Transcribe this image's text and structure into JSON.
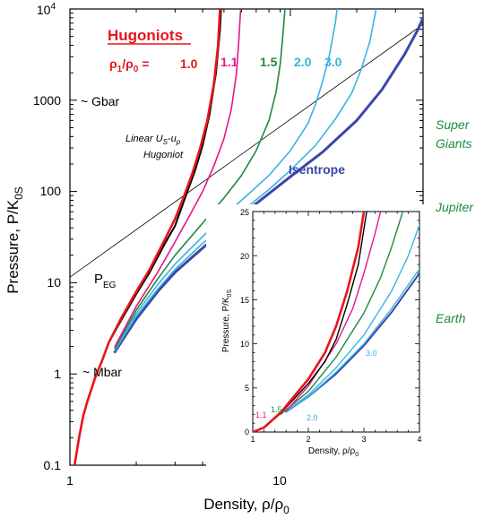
{
  "chart_data": [
    {
      "type": "line",
      "xscale": "log",
      "yscale": "log",
      "xlim": [
        1,
        40
      ],
      "ylim": [
        0.1,
        10000
      ],
      "xlabel": "Density, ρ/ρ",
      "xlabel_sub": "0",
      "ylabel": "Pressure, P/K",
      "ylabel_sub": "0S",
      "x_ticks": [
        {
          "value": 1,
          "label": "1"
        },
        {
          "value": 10,
          "label": "10"
        }
      ],
      "y_ticks": [
        {
          "value": 0.1,
          "label": "0.1"
        },
        {
          "value": 1,
          "label": "1"
        },
        {
          "value": 10,
          "label": "10"
        },
        {
          "value": 100,
          "label": "100"
        },
        {
          "value": 1000,
          "label": "1000"
        },
        {
          "value": 10000,
          "label": "10",
          "sup": "4"
        }
      ],
      "legend_title": "Hugoniots",
      "ratio_label": "ρ",
      "ratio_label_sub1": "1",
      "ratio_label_mid": "/ρ",
      "ratio_label_sub2": "0",
      "ratio_label_eq": " =",
      "series": [
        {
          "name": "1.0",
          "color": "#e8141c",
          "width": 2.6,
          "points": [
            [
              1.05,
              0.1
            ],
            [
              1.1,
              0.2
            ],
            [
              1.15,
              0.35
            ],
            [
              1.2,
              0.5
            ],
            [
              1.3,
              0.9
            ],
            [
              1.4,
              1.4
            ],
            [
              1.5,
              2.2
            ],
            [
              1.7,
              4
            ],
            [
              2.0,
              8
            ],
            [
              2.3,
              14
            ],
            [
              2.7,
              30
            ],
            [
              3.0,
              50
            ],
            [
              3.3,
              90
            ],
            [
              3.6,
              160
            ],
            [
              3.9,
              300
            ],
            [
              4.2,
              600
            ],
            [
              4.5,
              1500
            ],
            [
              4.7,
              4000
            ],
            [
              4.8,
              10000
            ]
          ]
        },
        {
          "name": "",
          "color": "#000000",
          "width": 2.0,
          "points": [
            [
              1.05,
              0.1
            ],
            [
              1.1,
              0.2
            ],
            [
              1.15,
              0.35
            ],
            [
              1.2,
              0.5
            ],
            [
              1.3,
              0.9
            ],
            [
              1.4,
              1.4
            ],
            [
              1.5,
              2.2
            ],
            [
              1.7,
              3.8
            ],
            [
              2.0,
              7.5
            ],
            [
              2.3,
              13
            ],
            [
              2.7,
              27
            ],
            [
              3.0,
              42
            ],
            [
              3.3,
              80
            ],
            [
              3.7,
              170
            ],
            [
              4.0,
              320
            ],
            [
              4.3,
              700
            ],
            [
              4.6,
              2000
            ],
            [
              4.8,
              6000
            ],
            [
              4.85,
              10000
            ]
          ]
        },
        {
          "name": "1.1",
          "color": "#e8148a",
          "width": 1.6,
          "points": [
            [
              1.6,
              2
            ],
            [
              2.0,
              5.5
            ],
            [
              2.5,
              13
            ],
            [
              3.0,
              28
            ],
            [
              3.5,
              55
            ],
            [
              4.0,
              100
            ],
            [
              4.5,
              190
            ],
            [
              5.0,
              380
            ],
            [
              5.4,
              800
            ],
            [
              5.7,
              2000
            ],
            [
              5.85,
              5000
            ],
            [
              5.95,
              10000
            ]
          ]
        },
        {
          "name": "1.5",
          "color": "#1f8a3c",
          "width": 1.6,
          "points": [
            [
              1.6,
              1.9
            ],
            [
              2.0,
              5
            ],
            [
              2.5,
              11
            ],
            [
              3.0,
              20
            ],
            [
              4.0,
              45
            ],
            [
              5.0,
              85
            ],
            [
              6.0,
              150
            ],
            [
              7.0,
              280
            ],
            [
              8.0,
              600
            ],
            [
              8.6,
              1200
            ],
            [
              9.0,
              2500
            ],
            [
              9.3,
              6000
            ],
            [
              9.45,
              10000
            ]
          ]
        },
        {
          "name": "2.0",
          "color": "#3bb3e0",
          "width": 1.6,
          "points": [
            [
              1.6,
              1.8
            ],
            [
              2.0,
              4.6
            ],
            [
              2.5,
              9.5
            ],
            [
              3.0,
              16
            ],
            [
              4.0,
              32
            ],
            [
              5.0,
              55
            ],
            [
              6.0,
              80
            ],
            [
              8.0,
              150
            ],
            [
              10.0,
              280
            ],
            [
              12.0,
              550
            ],
            [
              13.0,
              900
            ],
            [
              14.0,
              1600
            ],
            [
              15.0,
              3000
            ],
            [
              16.0,
              7000
            ],
            [
              16.3,
              10000
            ]
          ]
        },
        {
          "name": "3.0",
          "color": "#3bb3e0",
          "width": 1.6,
          "points": [
            [
              1.6,
              1.8
            ],
            [
              2.0,
              4.3
            ],
            [
              2.5,
              8.5
            ],
            [
              3.0,
              14
            ],
            [
              4.0,
              27
            ],
            [
              5.0,
              42
            ],
            [
              6.0,
              60
            ],
            [
              8.0,
              105
            ],
            [
              10.0,
              170
            ],
            [
              13.0,
              320
            ],
            [
              16.0,
              620
            ],
            [
              19.0,
              1200
            ],
            [
              21.0,
              2200
            ],
            [
              23.0,
              4500
            ],
            [
              24.5,
              10000
            ]
          ]
        },
        {
          "name": "Isentrope",
          "color": "#3a47a8",
          "width": 3.0,
          "points": [
            [
              1.6,
              1.75
            ],
            [
              2.0,
              4
            ],
            [
              2.5,
              8
            ],
            [
              3.0,
              13
            ],
            [
              4.0,
              24
            ],
            [
              5.0,
              38
            ],
            [
              6.0,
              55
            ],
            [
              8.0,
              95
            ],
            [
              10.0,
              145
            ],
            [
              14.0,
              270
            ],
            [
              20.0,
              600
            ],
            [
              26.0,
              1300
            ],
            [
              33.0,
              3200
            ],
            [
              38.0,
              6000
            ],
            [
              40.0,
              8000
            ]
          ]
        },
        {
          "name": "P",
          "name_sub": "EG",
          "color": "#000000",
          "width": 0.8,
          "points": [
            [
              1,
              11.5
            ],
            [
              40,
              6800
            ]
          ]
        }
      ],
      "annotations": {
        "gbar": "~ Gbar",
        "mbar": "~ Mbar",
        "linear_line1": "Linear U",
        "linear_sub1": "S",
        "linear_mid": "-u",
        "linear_sub2": "p",
        "linear_line2": "Hugoniot"
      },
      "planet_labels": {
        "super_giants_1": "Super",
        "super_giants_2": "Giants",
        "jupiter": "Jupiter",
        "earth": "Earth",
        "color": "#1f8a3c"
      }
    },
    {
      "type": "line",
      "inset": true,
      "xlim": [
        1,
        4
      ],
      "ylim": [
        0,
        25
      ],
      "xlabel": "Density, ρ/ρ",
      "xlabel_sub": "0",
      "ylabel": "Pressure, P/K",
      "ylabel_sub": "0S",
      "x_ticks": [
        "1",
        "2",
        "3",
        "4"
      ],
      "y_ticks": [
        "0",
        "5",
        "10",
        "15",
        "20",
        "25"
      ],
      "series": [
        {
          "name": "1.0",
          "color": "#e8141c",
          "width": 2.6,
          "points": [
            [
              1.0,
              0
            ],
            [
              1.2,
              0.5
            ],
            [
              1.5,
              2.2
            ],
            [
              2.0,
              6
            ],
            [
              2.3,
              9
            ],
            [
              2.5,
              12
            ],
            [
              2.7,
              16
            ],
            [
              2.9,
              21
            ],
            [
              3.0,
              25
            ]
          ]
        },
        {
          "name": "",
          "color": "#000000",
          "width": 1.4,
          "points": [
            [
              1.0,
              0
            ],
            [
              1.2,
              0.5
            ],
            [
              1.5,
              2.1
            ],
            [
              2.0,
              5.5
            ],
            [
              2.3,
              8
            ],
            [
              2.5,
              10.5
            ],
            [
              2.7,
              14.5
            ],
            [
              2.9,
              19
            ],
            [
              3.05,
              25
            ]
          ]
        },
        {
          "name": "1.1",
          "color": "#e8148a",
          "width": 1.4,
          "points": [
            [
              1.6,
              2.4
            ],
            [
              2.0,
              5.2
            ],
            [
              2.5,
              10
            ],
            [
              2.8,
              14
            ],
            [
              3.0,
              18
            ],
            [
              3.2,
              22.5
            ],
            [
              3.3,
              25
            ]
          ]
        },
        {
          "name": "1.5",
          "color": "#1f8a3c",
          "width": 1.4,
          "points": [
            [
              1.5,
              2
            ],
            [
              2.0,
              4.6
            ],
            [
              2.5,
              8.5
            ],
            [
              3.0,
              13.5
            ],
            [
              3.3,
              17.5
            ],
            [
              3.5,
              21
            ],
            [
              3.7,
              25
            ]
          ]
        },
        {
          "name": "2.0",
          "color": "#3bb3e0",
          "width": 1.4,
          "points": [
            [
              1.6,
              2.4
            ],
            [
              2.0,
              4.2
            ],
            [
              2.5,
              7.3
            ],
            [
              3.0,
              11
            ],
            [
              3.5,
              16
            ],
            [
              3.8,
              20
            ],
            [
              4.0,
              23.5
            ]
          ]
        },
        {
          "name": "3.0",
          "color": "#3bb3e0",
          "width": 1.4,
          "points": [
            [
              1.6,
              2.3
            ],
            [
              2.0,
              4
            ],
            [
              2.5,
              6.8
            ],
            [
              3.0,
              10
            ],
            [
              3.5,
              14
            ],
            [
              4.0,
              18.5
            ]
          ]
        },
        {
          "name": "",
          "color": "#3a47a8",
          "width": 2.0,
          "points": [
            [
              1.6,
              2.3
            ],
            [
              2.0,
              4
            ],
            [
              2.5,
              6.6
            ],
            [
              3.0,
              9.8
            ],
            [
              3.5,
              13.6
            ],
            [
              4.0,
              18
            ]
          ]
        }
      ],
      "labels": {
        "l11": "1.1",
        "l15": "1.5",
        "l20": "2.0",
        "l30": "3.0"
      }
    }
  ]
}
